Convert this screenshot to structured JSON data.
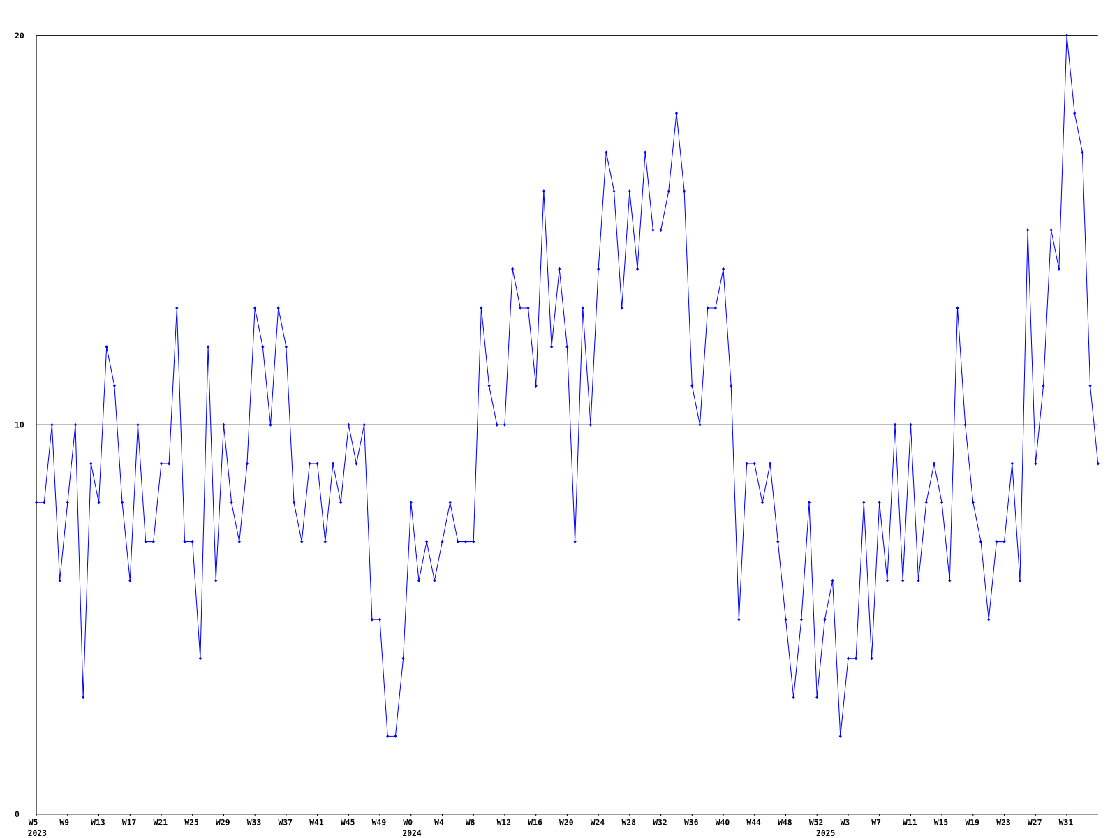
{
  "chart_data": {
    "type": "line",
    "categories": [
      "W5",
      null,
      null,
      null,
      "W9",
      null,
      null,
      null,
      "W13",
      null,
      null,
      null,
      "W17",
      null,
      null,
      null,
      "W21",
      null,
      null,
      null,
      "W25",
      null,
      null,
      null,
      "W29",
      null,
      null,
      null,
      "W33",
      null,
      null,
      null,
      "W37",
      null,
      null,
      null,
      "W41",
      null,
      null,
      null,
      "W45",
      null,
      null,
      null,
      "W49",
      null,
      null,
      null,
      "W0",
      null,
      null,
      null,
      "W4",
      null,
      null,
      null,
      "W8",
      null,
      null,
      null,
      "W12",
      null,
      null,
      null,
      "W16",
      null,
      null,
      null,
      "W20",
      null,
      null,
      null,
      "W24",
      null,
      null,
      null,
      "W28",
      null,
      null,
      null,
      "W32",
      null,
      null,
      null,
      "W36",
      null,
      null,
      null,
      "W40",
      null,
      null,
      null,
      "W44",
      null,
      null,
      null,
      "W48",
      null,
      null,
      null,
      "W52",
      null,
      null,
      null,
      "W3",
      null,
      null,
      null,
      "W7",
      null,
      null,
      null,
      "W11",
      null,
      null,
      null,
      "W15",
      null,
      null,
      null,
      "W19",
      null,
      null,
      null,
      "W23",
      null,
      null,
      null,
      "W27",
      null,
      null,
      null,
      "W31",
      null,
      null,
      null,
      null
    ],
    "category_years": [
      "2023",
      null,
      null,
      null,
      null,
      null,
      null,
      null,
      null,
      null,
      null,
      null,
      null,
      null,
      null,
      null,
      null,
      null,
      null,
      null,
      null,
      null,
      null,
      null,
      null,
      null,
      null,
      null,
      null,
      null,
      null,
      null,
      null,
      null,
      null,
      null,
      null,
      null,
      null,
      null,
      null,
      null,
      null,
      null,
      null,
      null,
      null,
      null,
      "2024",
      null,
      null,
      null,
      null,
      null,
      null,
      null,
      null,
      null,
      null,
      null,
      null,
      null,
      null,
      null,
      null,
      null,
      null,
      null,
      null,
      null,
      null,
      null,
      null,
      null,
      null,
      null,
      null,
      null,
      null,
      null,
      null,
      null,
      null,
      null,
      null,
      null,
      null,
      null,
      null,
      null,
      null,
      null,
      null,
      null,
      null,
      null,
      null,
      null,
      null,
      null,
      null,
      "2025",
      null,
      null,
      null,
      null,
      null,
      null,
      null,
      null,
      null,
      null,
      null,
      null,
      null,
      null,
      null,
      null,
      null,
      null,
      null,
      null,
      null,
      null,
      null,
      null,
      null,
      null,
      null,
      null,
      null,
      null,
      null,
      null,
      null,
      null
    ],
    "series": [
      {
        "color": "#0000ff",
        "values": [
          8,
          8,
          10,
          6,
          8,
          10,
          3,
          9,
          8,
          12,
          11,
          8,
          6,
          10,
          7,
          7,
          9,
          9,
          13,
          7,
          7,
          4,
          12,
          6,
          10,
          8,
          7,
          9,
          13,
          12,
          10,
          13,
          12,
          8,
          7,
          9,
          9,
          7,
          9,
          8,
          10,
          9,
          10,
          5,
          5,
          2,
          2,
          4,
          8,
          6,
          7,
          6,
          7,
          8,
          7,
          7,
          7,
          13,
          11,
          10,
          10,
          14,
          13,
          13,
          11,
          16,
          12,
          14,
          12,
          7,
          13,
          10,
          14,
          17,
          16,
          13,
          16,
          14,
          17,
          15,
          15,
          16,
          18,
          16,
          11,
          10,
          13,
          13,
          14,
          11,
          5,
          9,
          9,
          8,
          9,
          7,
          5,
          3,
          5,
          8,
          3,
          5,
          6,
          2,
          4,
          4,
          8,
          4,
          8,
          6,
          10,
          6,
          10,
          6,
          8,
          9,
          8,
          6,
          13,
          10,
          8,
          7,
          5,
          7,
          7,
          9,
          6,
          15,
          9,
          11,
          15,
          14,
          20,
          18,
          17,
          11,
          9
        ]
      }
    ],
    "ylim": [
      0,
      20
    ],
    "yticks": [
      0,
      10,
      20
    ],
    "grid": true
  }
}
